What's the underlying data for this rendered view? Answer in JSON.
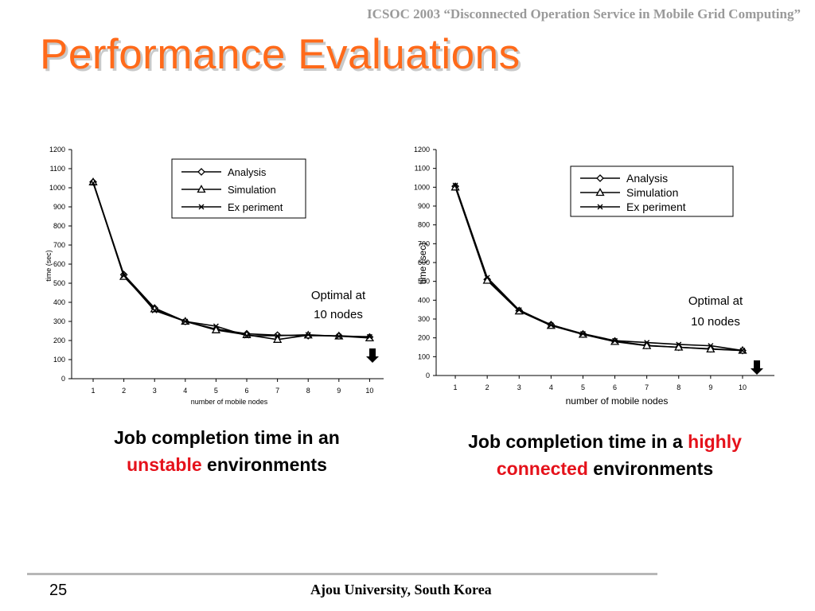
{
  "header": {
    "text": "ICSOC 2003 “Disconnected Operation Service in Mobile Grid Computing”"
  },
  "slide": {
    "title": "Performance Evaluations"
  },
  "charts": {
    "left": {
      "annotation_line1": "Optimal at",
      "annotation_line2": "10 nodes",
      "xlabel": "number of mobile nodes",
      "ylabel": "time (sec)",
      "legend": [
        "Analysis",
        "Simulation",
        "Ex periment"
      ]
    },
    "right": {
      "annotation_line1": "Optimal at",
      "annotation_line2": "10 nodes",
      "xlabel": "number of mobile nodes",
      "ylabel": "time (sec)",
      "legend": [
        "Analysis",
        "Simulation",
        "Ex periment"
      ]
    }
  },
  "chart_data": [
    {
      "type": "line",
      "title": "",
      "xlabel": "number of mobile nodes",
      "ylabel": "time (sec)",
      "x": [
        1,
        2,
        3,
        4,
        5,
        6,
        7,
        8,
        9,
        10
      ],
      "ylim": [
        0,
        1200
      ],
      "yticks": [
        0,
        100,
        200,
        300,
        400,
        500,
        600,
        700,
        800,
        900,
        1000,
        1100,
        1200
      ],
      "grid": false,
      "legend_position": "top-right",
      "series": [
        {
          "name": "Analysis",
          "marker": "diamond",
          "values": [
            1030,
            545,
            370,
            300,
            260,
            235,
            228,
            225,
            225,
            218
          ]
        },
        {
          "name": "Simulation",
          "marker": "triangle",
          "values": [
            1030,
            535,
            365,
            300,
            255,
            230,
            205,
            228,
            223,
            213
          ]
        },
        {
          "name": "Ex periment",
          "marker": "x",
          "values": [
            1025,
            540,
            357,
            300,
            275,
            225,
            225,
            230,
            222,
            220
          ]
        }
      ],
      "annotation": "Optimal at 10 nodes"
    },
    {
      "type": "line",
      "title": "",
      "xlabel": "number of mobile nodes",
      "ylabel": "time (sec)",
      "x": [
        1,
        2,
        3,
        4,
        5,
        6,
        7,
        8,
        9,
        10
      ],
      "ylim": [
        0,
        1200
      ],
      "yticks": [
        0,
        100,
        200,
        300,
        400,
        500,
        600,
        700,
        800,
        900,
        1000,
        1100,
        1200
      ],
      "grid": false,
      "legend_position": "top-right",
      "series": [
        {
          "name": "Analysis",
          "marker": "diamond",
          "values": [
            1005,
            510,
            345,
            270,
            220,
            183,
            160,
            150,
            142,
            133
          ]
        },
        {
          "name": "Simulation",
          "marker": "triangle",
          "values": [
            1000,
            505,
            342,
            265,
            218,
            180,
            158,
            150,
            140,
            133
          ]
        },
        {
          "name": "Ex periment",
          "marker": "x",
          "values": [
            1010,
            520,
            348,
            268,
            222,
            185,
            175,
            165,
            158,
            133
          ]
        }
      ],
      "annotation": "Optimal at 10 nodes"
    }
  ],
  "captions": {
    "left": {
      "line1": "Job completion time in an",
      "highlight": "unstable",
      "rest": " environments"
    },
    "right": {
      "line1_prefix": "Job completion time in a ",
      "line1_highlight": "highly",
      "line2_highlight": "connected",
      "line2_rest": " environments"
    }
  },
  "footer": {
    "page_number": "25",
    "text": "Ajou University, South Korea"
  },
  "colors": {
    "title": "#ff6a1a",
    "highlight": "#e5121b",
    "header": "#9a9a9a"
  }
}
